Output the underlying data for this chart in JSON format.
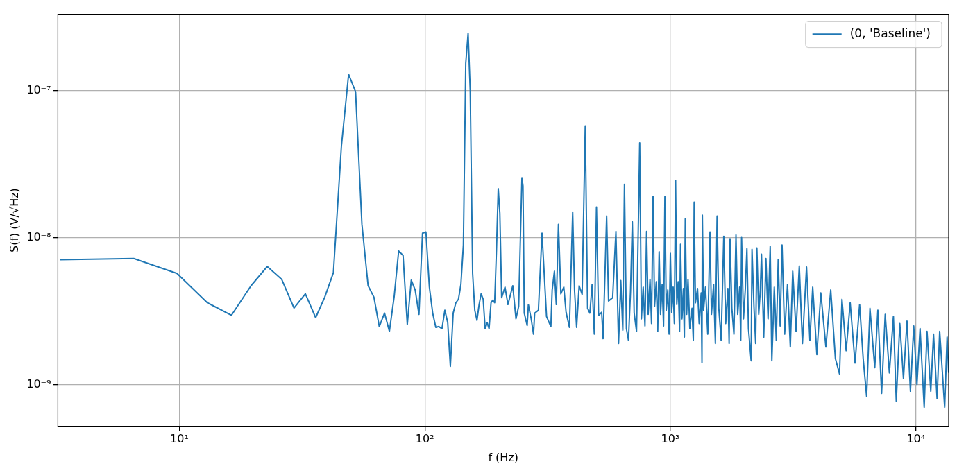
{
  "chart_data": {
    "type": "line",
    "xlabel": "f (Hz)",
    "ylabel": "S(f) (V/√Hz)",
    "log": "xy",
    "grid": true,
    "legend": "top right",
    "xlim": [
      3.2,
      13600
    ],
    "ylim": [
      5.2e-10,
      3.3e-07
    ],
    "xticks": [
      {
        "value": 10,
        "label": "10¹"
      },
      {
        "value": 100,
        "label": "10²"
      },
      {
        "value": 1000,
        "label": "10³"
      },
      {
        "value": 10000,
        "label": "10⁴"
      }
    ],
    "yticks": [
      {
        "value": 1e-09,
        "label": "10⁻⁹"
      },
      {
        "value": 1e-08,
        "label": "10⁻⁸"
      },
      {
        "value": 1e-07,
        "label": "10⁻⁷"
      }
    ],
    "series": [
      {
        "name": "(0, 'Baseline')",
        "color": "#1f77b4",
        "x": [
          3.26,
          6.52,
          9.78,
          13.0,
          16.3,
          19.6,
          22.8,
          26.1,
          29.3,
          32.6,
          35.9,
          39.1,
          42.4,
          45.7,
          48.9,
          52.2,
          55.4,
          58.7,
          62.0,
          65.2,
          68.5,
          71.7,
          75.0,
          78.2,
          81.5,
          84.8,
          88.0,
          91.3,
          94.6,
          97.8,
          101,
          104.3,
          107.6,
          110.8,
          114,
          117.4,
          120.6,
          123.9,
          127,
          130.4,
          133.7,
          137,
          140.2,
          143.5,
          146.7,
          150,
          153,
          156.5,
          159.7,
          163,
          166.3,
          169.5,
          172.8,
          176,
          179.4,
          182.6,
          186,
          189,
          192.4,
          195.7,
          199,
          202,
          205.5,
          212,
          218,
          228,
          235,
          241,
          248.5,
          251,
          254,
          261,
          264,
          271,
          277,
          280,
          290,
          300,
          313,
          326,
          330,
          337,
          343,
          350,
          358,
          368,
          376,
          388,
          400,
          407,
          415,
          425,
          437,
          450,
          460,
          470,
          480,
          490,
          500,
          510,
          525,
          532,
          550,
          560,
          582,
          600,
          615,
          628,
          640,
          650,
          662,
          675,
          688,
          700,
          712,
          728,
          750,
          762,
          775,
          788,
          800,
          812,
          826,
          838,
          850,
          862,
          876,
          888,
          900,
          912,
          926,
          938,
          950,
          962,
          976,
          988,
          1000,
          1012,
          1026,
          1038,
          1050,
          1062,
          1076,
          1090,
          1100,
          1115,
          1130,
          1140,
          1150,
          1165,
          1180,
          1200,
          1225,
          1240,
          1250,
          1265,
          1290,
          1310,
          1335,
          1345,
          1350,
          1365,
          1390,
          1420,
          1450,
          1470,
          1500,
          1525,
          1550,
          1575,
          1610,
          1650,
          1680,
          1715,
          1735,
          1750,
          1780,
          1815,
          1850,
          1880,
          1915,
          1935,
          1950,
          1985,
          2020,
          2050,
          2080,
          2133,
          2150,
          2190,
          2225,
          2250,
          2290,
          2325,
          2350,
          2400,
          2450,
          2500,
          2550,
          2590,
          2650,
          2700,
          2750,
          2800,
          2850,
          2920,
          3000,
          3080,
          3150,
          3250,
          3350,
          3450,
          3586,
          3700,
          3800,
          3950,
          4100,
          4300,
          4500,
          4700,
          4886,
          5000,
          5200,
          5400,
          5650,
          5900,
          6100,
          6300,
          6500,
          6800,
          7000,
          7250,
          7500,
          7800,
          8100,
          8320,
          8600,
          8900,
          9200,
          9500,
          9800,
          10100,
          10400,
          10810,
          11100,
          11500,
          11800,
          12200,
          12500,
          13100,
          13400,
          13600
        ],
        "values": [
          7.06e-09,
          7.19e-09,
          5.7e-09,
          3.6e-09,
          2.96e-09,
          4.71e-09,
          6.35e-09,
          5.2e-09,
          3.31e-09,
          4.14e-09,
          2.85e-09,
          3.93e-09,
          5.77e-09,
          4.17e-08,
          1.29e-07,
          9.8e-08,
          1.23e-08,
          4.71e-09,
          3.93e-09,
          2.48e-09,
          3.06e-09,
          2.3e-09,
          3.98e-09,
          8.1e-09,
          7.55e-09,
          2.56e-09,
          5.13e-09,
          4.4e-09,
          3e-09,
          1.07e-08,
          1.09e-08,
          4.6e-09,
          3.06e-09,
          2.45e-09,
          2.48e-09,
          2.4e-09,
          3.2e-09,
          2.63e-09,
          1.33e-09,
          3.06e-09,
          3.6e-09,
          3.8e-09,
          4.8e-09,
          8.9e-09,
          1.53e-07,
          2.45e-07,
          1e-07,
          5.7e-09,
          3.2e-09,
          2.73e-09,
          3.5e-09,
          4.14e-09,
          3.8e-09,
          2.4e-09,
          2.63e-09,
          2.4e-09,
          3.6e-09,
          3.75e-09,
          3.6e-09,
          8.2e-09,
          2.15e-08,
          1.46e-08,
          3.9e-09,
          4.6e-09,
          3.5e-09,
          4.7e-09,
          2.8e-09,
          3.4e-09,
          2.55e-08,
          2.24e-08,
          3.06e-09,
          2.52e-09,
          3.5e-09,
          2.8e-09,
          2.2e-09,
          3.06e-09,
          3.2e-09,
          1.07e-08,
          2.9e-09,
          2.48e-09,
          4.4e-09,
          5.9e-09,
          3.5e-09,
          1.23e-08,
          4.14e-09,
          4.6e-09,
          3.1e-09,
          2.45e-09,
          1.49e-08,
          4.4e-09,
          2.45e-09,
          4.7e-09,
          4.1e-09,
          5.74e-08,
          3.3e-09,
          3.06e-09,
          4.8e-09,
          2.2e-09,
          1.61e-08,
          2.95e-09,
          3.1e-09,
          2.05e-09,
          1.4e-08,
          3.7e-09,
          3.9e-09,
          1.1e-08,
          1.9e-09,
          5.1e-09,
          2.34e-09,
          2.3e-08,
          2.4e-09,
          2e-09,
          4.3e-09,
          1.28e-08,
          3.06e-09,
          2.3e-09,
          4.4e-08,
          2.8e-09,
          4.6e-09,
          2.5e-09,
          1.1e-08,
          3e-09,
          5.2e-09,
          2.6e-09,
          1.9e-08,
          3.4e-09,
          5e-09,
          2.3e-09,
          8e-09,
          3e-09,
          4.8e-09,
          2.5e-09,
          1.9e-08,
          3.2e-09,
          4.4e-09,
          2.2e-09,
          7.8e-09,
          3.1e-09,
          4.6e-09,
          2.6e-09,
          2.45e-08,
          3.5e-09,
          5e-09,
          2.3e-09,
          9e-09,
          2.8e-09,
          4.5e-09,
          2.1e-09,
          1.34e-08,
          3e-09,
          5.2e-09,
          2.4e-09,
          3.3e-09,
          2e-09,
          1.74e-08,
          3.6e-09,
          4.5e-09,
          2.6e-09,
          4.2e-09,
          1.41e-09,
          1.42e-08,
          3.2e-09,
          4.6e-09,
          2.2e-09,
          1.09e-08,
          3e-09,
          4.8e-09,
          1.9e-09,
          1.4e-08,
          3.3e-09,
          2e-09,
          1.02e-08,
          2.6e-09,
          4.5e-09,
          1.9e-09,
          9.8e-09,
          3.3e-09,
          2.2e-09,
          1.04e-08,
          3e-09,
          4.6e-09,
          2e-09,
          1e-08,
          2.8e-09,
          4.5e-09,
          8.4e-09,
          2.4e-09,
          1.45e-09,
          8.3e-09,
          3.4e-09,
          1.9e-09,
          8.5e-09,
          3e-09,
          4.4e-09,
          7.7e-09,
          2.1e-09,
          7.2e-09,
          2.8e-09,
          8.7e-09,
          1.45e-09,
          4.6e-09,
          2e-09,
          7.1e-09,
          2.5e-09,
          8.9e-09,
          2.2e-09,
          4.8e-09,
          1.8e-09,
          5.9e-09,
          2.3e-09,
          6.4e-09,
          1.9e-09,
          6.3e-09,
          2e-09,
          4.6e-09,
          1.6e-09,
          4.2e-09,
          1.8e-09,
          4.4e-09,
          1.5e-09,
          1.18e-09,
          3.8e-09,
          1.7e-09,
          3.6e-09,
          1.4e-09,
          3.5e-09,
          1.5e-09,
          8.3e-10,
          3.3e-09,
          1.3e-09,
          3.2e-09,
          8.7e-10,
          3e-09,
          1.2e-09,
          2.9e-09,
          7.7e-10,
          2.6e-09,
          1.1e-09,
          2.7e-09,
          9e-10,
          2.5e-09,
          1e-09,
          2.4e-09,
          7e-10,
          2.3e-09,
          9e-10,
          2.2e-09,
          8e-10,
          2.3e-09,
          7e-10,
          2.1e-09,
          1.2e-09
        ]
      }
    ]
  }
}
